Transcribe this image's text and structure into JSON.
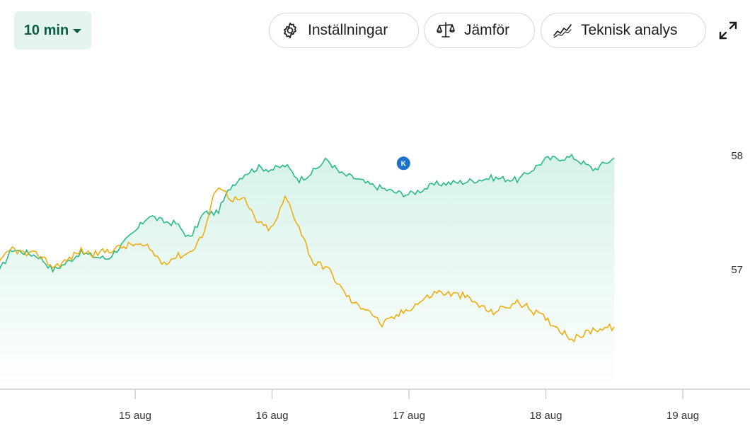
{
  "toolbar": {
    "interval_label": "10 min",
    "settings_label": "Inställningar",
    "compare_label": "Jämför",
    "technical_label": "Teknisk analys"
  },
  "icons": {
    "interval": "caret-down-icon",
    "settings": "gear-icon",
    "compare": "scale-icon",
    "technical": "trend-line-icon",
    "expand": "expand-icon"
  },
  "colors": {
    "primary_series": "#1db981",
    "comparison_series": "#f2a900",
    "event_marker": "#1a73c8",
    "interval_bg": "#e3f5ee"
  },
  "chart_data": {
    "type": "line",
    "x_tick_labels": [
      "15 aug",
      "16 aug",
      "17 aug",
      "18 aug",
      "19 aug"
    ],
    "y_tick_labels": [
      "58",
      "57"
    ],
    "ylim": [
      56.0,
      58.8
    ],
    "grid": false,
    "event_marker_label": "K",
    "series": [
      {
        "color": "#1db981",
        "fill": true,
        "x": [
          0.0,
          0.1,
          0.2,
          0.3,
          0.4,
          0.5,
          0.6,
          0.7,
          0.8,
          1.0,
          1.1,
          1.2,
          1.3,
          1.4,
          1.5,
          1.6,
          1.7,
          1.8,
          1.9,
          2.0,
          2.1,
          2.2,
          2.3,
          2.4,
          2.5,
          2.6,
          2.7,
          2.8,
          2.9,
          3.0,
          3.2,
          3.4,
          3.6,
          3.8,
          4.0,
          4.2,
          4.35,
          4.5
        ],
        "values": [
          57.12,
          57.35,
          57.32,
          57.28,
          57.15,
          57.22,
          57.32,
          57.28,
          57.26,
          57.52,
          57.68,
          57.62,
          57.6,
          57.45,
          57.7,
          57.7,
          57.96,
          58.08,
          58.14,
          58.12,
          58.16,
          58.02,
          58.1,
          58.22,
          58.08,
          58.04,
          57.98,
          57.94,
          57.9,
          57.88,
          57.98,
          58.0,
          58.04,
          58.02,
          58.22,
          58.24,
          58.12,
          58.23
        ]
      },
      {
        "color": "#f2a900",
        "fill": false,
        "x": [
          0.0,
          0.1,
          0.2,
          0.3,
          0.4,
          0.5,
          0.6,
          0.7,
          0.8,
          1.0,
          1.1,
          1.2,
          1.3,
          1.4,
          1.5,
          1.6,
          1.7,
          1.8,
          1.9,
          2.0,
          2.1,
          2.2,
          2.3,
          2.4,
          2.5,
          2.6,
          2.7,
          2.8,
          2.9,
          3.0,
          3.2,
          3.4,
          3.6,
          3.8,
          4.0,
          4.2,
          4.35,
          4.5
        ],
        "values": [
          57.2,
          57.36,
          57.3,
          57.3,
          57.18,
          57.24,
          57.34,
          57.3,
          57.34,
          57.4,
          57.36,
          57.22,
          57.28,
          57.32,
          57.5,
          57.98,
          57.84,
          57.82,
          57.6,
          57.54,
          57.86,
          57.56,
          57.22,
          57.18,
          56.98,
          56.82,
          56.78,
          56.62,
          56.7,
          56.78,
          56.94,
          56.9,
          56.74,
          56.84,
          56.68,
          56.48,
          56.58,
          56.6
        ]
      }
    ],
    "event_marker": {
      "x": 2.96,
      "y": 58.18,
      "label": "K"
    }
  }
}
